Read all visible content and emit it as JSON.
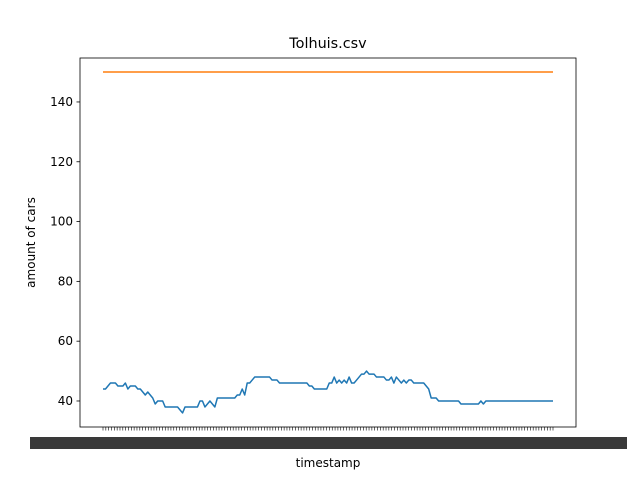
{
  "chart_data": {
    "type": "line",
    "title": "Tolhuis.csv",
    "xlabel": "timestamp",
    "ylabel": "amount of cars",
    "ylim": [
      31.3,
      154.7
    ],
    "yticks": [
      40,
      60,
      80,
      100,
      120,
      140
    ],
    "grid": false,
    "x_tick_count": 160,
    "series": [
      {
        "color": "#1f77b4",
        "values": [
          44,
          44,
          45,
          46,
          46,
          46,
          45,
          45,
          45,
          46,
          44,
          45,
          45,
          45,
          44,
          44,
          43,
          42,
          43,
          42,
          41,
          39,
          40,
          40,
          40,
          38,
          38,
          38,
          38,
          38,
          38,
          37,
          36,
          38,
          38,
          38,
          38,
          38,
          38,
          40,
          40,
          38,
          39,
          40,
          39,
          38,
          41,
          41,
          41,
          41,
          41,
          41,
          41,
          41,
          42,
          42,
          44,
          42,
          46,
          46,
          47,
          48,
          48,
          48,
          48,
          48,
          48,
          48,
          47,
          47,
          47,
          46,
          46,
          46,
          46,
          46,
          46,
          46,
          46,
          46,
          46,
          46,
          46,
          45,
          45,
          44,
          44,
          44,
          44,
          44,
          44,
          46,
          46,
          48,
          46,
          47,
          46,
          47,
          46,
          48,
          46,
          46,
          47,
          48,
          49,
          49,
          50,
          49,
          49,
          49,
          48,
          48,
          48,
          48,
          47,
          47,
          48,
          46,
          48,
          47,
          46,
          47,
          46,
          47,
          47,
          46,
          46,
          46,
          46,
          46,
          45,
          44,
          41,
          41,
          41,
          40,
          40,
          40,
          40,
          40,
          40,
          40,
          40,
          40,
          39,
          39,
          39,
          39,
          39,
          39,
          39,
          39,
          40,
          39,
          40,
          40,
          40,
          40,
          40,
          40,
          40,
          40,
          40,
          40,
          40,
          40,
          40,
          40,
          40,
          40,
          40,
          40,
          40,
          40,
          40,
          40,
          40,
          40,
          40,
          40,
          40,
          40
        ]
      },
      {
        "color": "#ff7f0e",
        "values": [
          150,
          150
        ]
      }
    ]
  }
}
